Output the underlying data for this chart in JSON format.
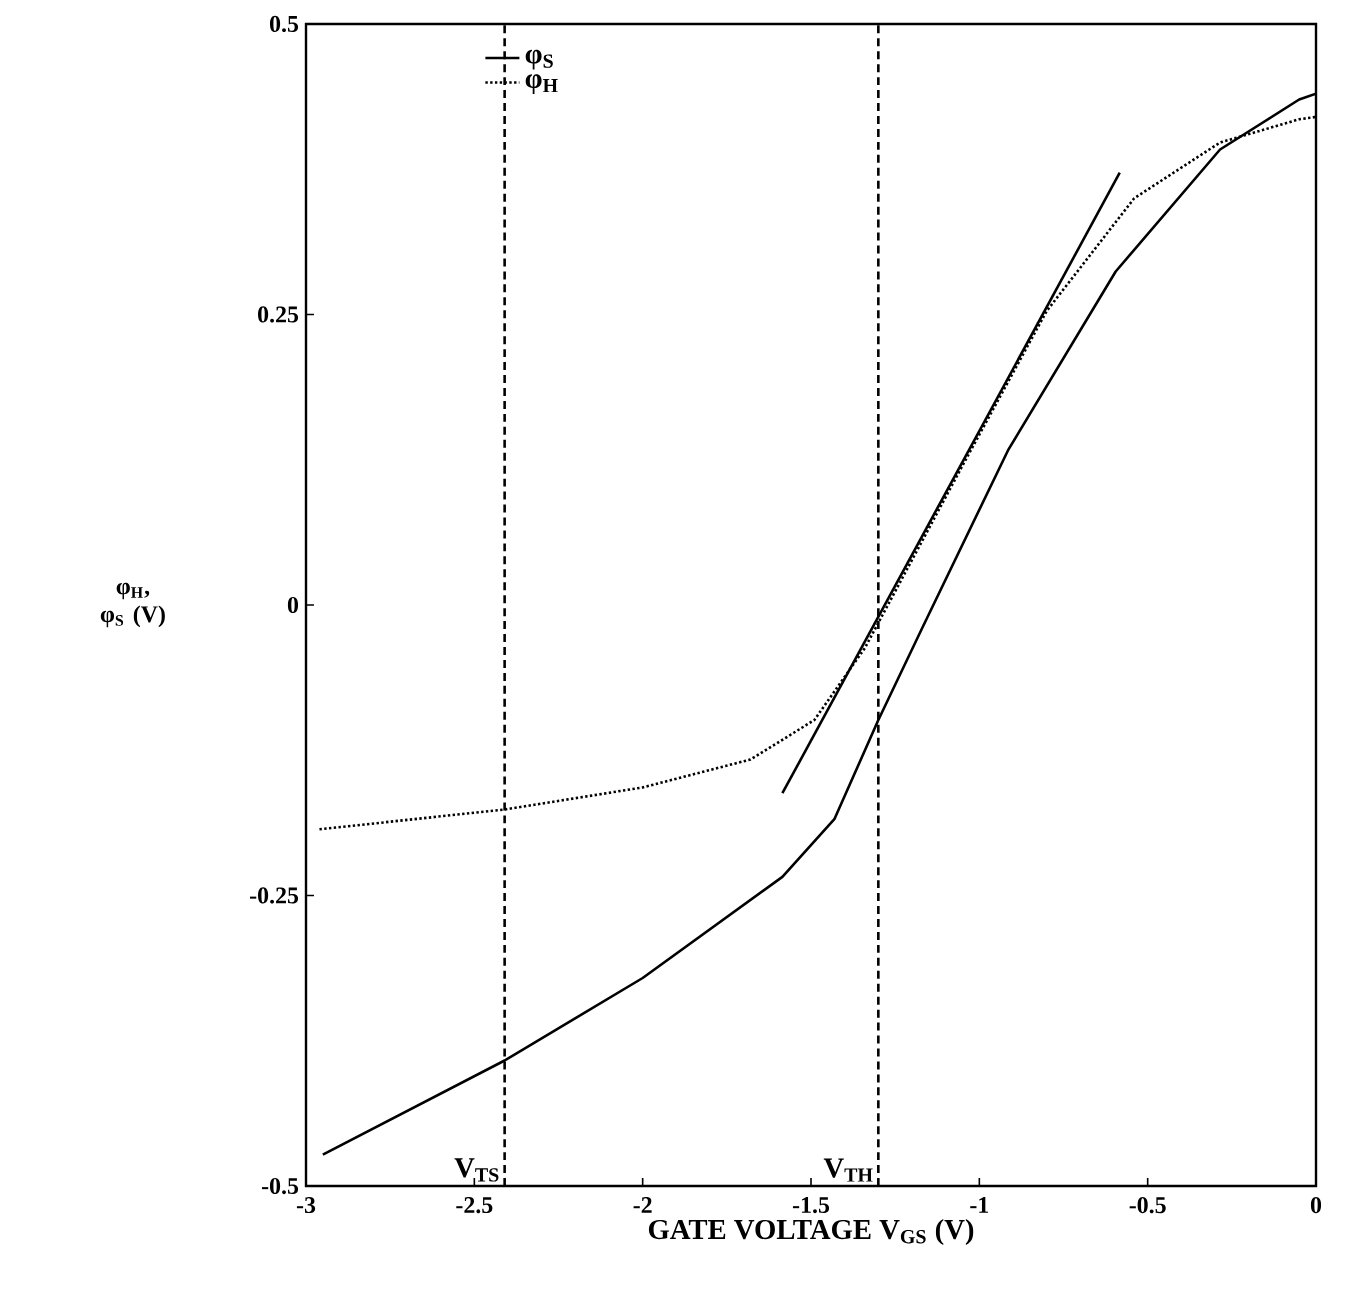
{
  "chart_data": {
    "type": "line",
    "xlabel": "GATE VOLTAGE V$_{GS}$ (V)",
    "ylabel": "φ$_{H}$, φ$_{S}$ (V)",
    "xlim": [
      -3,
      0
    ],
    "ylim": [
      -0.5,
      0.5
    ],
    "xticks": [
      -3,
      -2.5,
      -2,
      -1.5,
      -1,
      -0.5,
      0
    ],
    "yticks": [
      -0.5,
      -0.25,
      0,
      0.25,
      0.5
    ],
    "grid": false,
    "legend": "top left",
    "marker": "none",
    "series": [
      {
        "name": "φ$_{S}$",
        "color": "#000000",
        "line_style": "solid",
        "x": [
          -2.95,
          -2.41,
          -2.0,
          -1.585,
          -1.43,
          -1.3,
          -1.17,
          -0.915,
          -0.595,
          -0.285,
          -0.05,
          0
        ],
        "values": [
          -0.473,
          -0.392,
          -0.321,
          -0.234,
          -0.184,
          -0.099,
          -0.02,
          0.133,
          0.287,
          0.392,
          0.435,
          0.44
        ]
      },
      {
        "name": "φ$_{H}$",
        "color": "#000000",
        "line_style": "dotted",
        "x": [
          -2.96,
          -2.41,
          -2.0,
          -1.68,
          -1.49,
          -1.34,
          -1.05,
          -0.8,
          -0.54,
          -0.285,
          -0.05,
          0
        ],
        "values": [
          -0.193,
          -0.176,
          -0.157,
          -0.133,
          -0.099,
          -0.037,
          0.12,
          0.253,
          0.35,
          0.398,
          0.418,
          0.42
        ]
      },
      {
        "color": "#000000",
        "line_style": "solid",
        "x": [
          -1.585,
          -0.583
        ],
        "values": [
          -0.162,
          0.372
        ]
      }
    ],
    "ref_lines": [
      {
        "axis": "x",
        "value": -2.41,
        "label": "V$_{TS}$",
        "line_style": "dashed"
      },
      {
        "axis": "x",
        "value": -1.3,
        "label": "V$_{TH}$",
        "line_style": "dashed"
      }
    ]
  }
}
